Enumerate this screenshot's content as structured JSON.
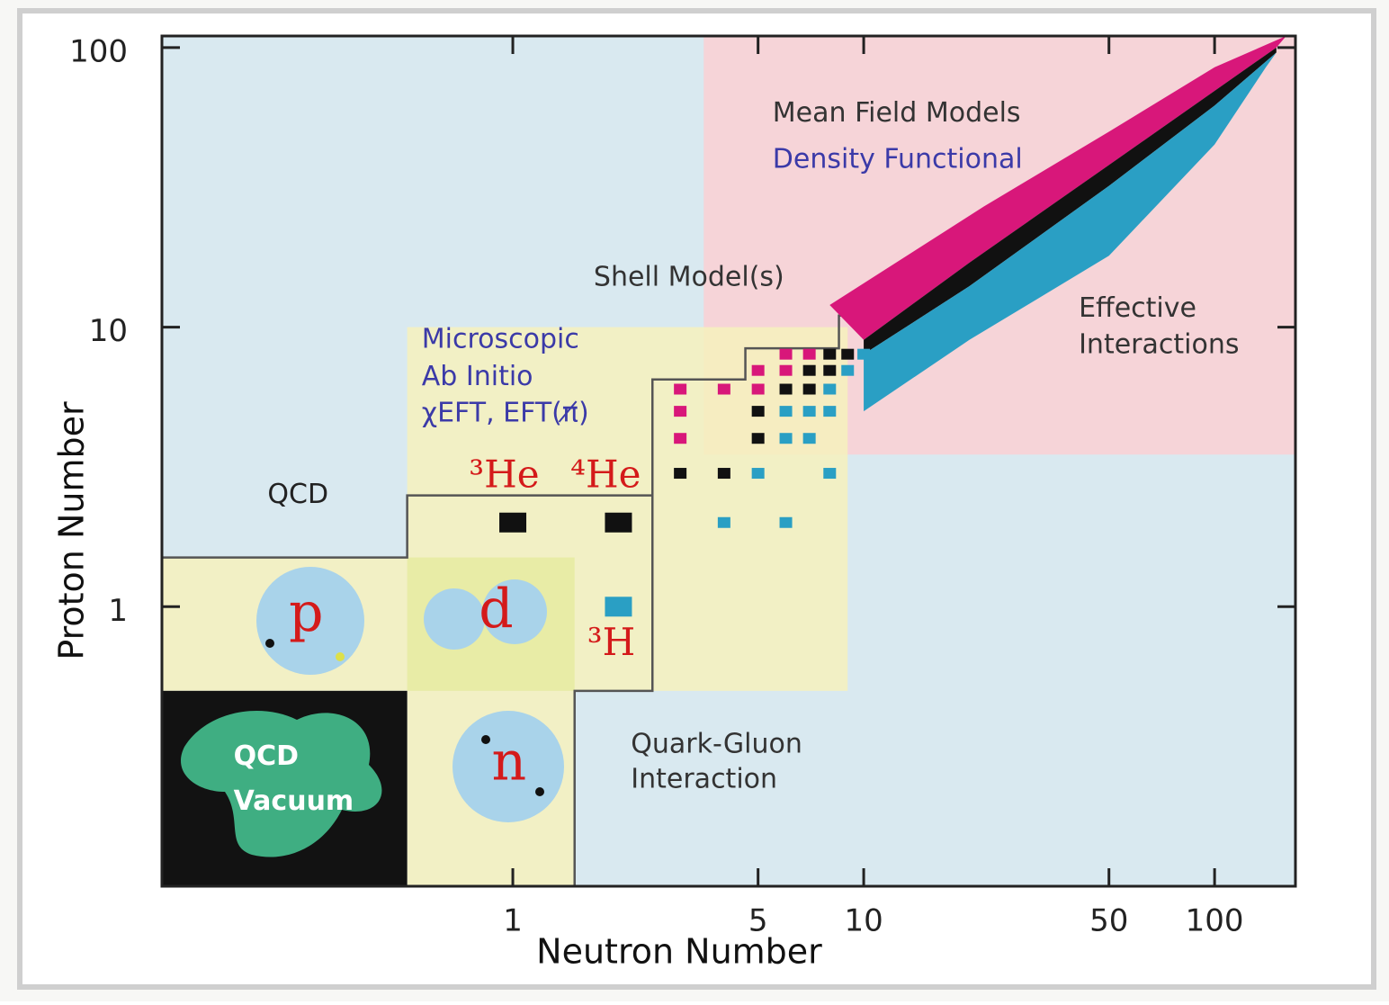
{
  "chart_data": {
    "type": "region_map",
    "xlabel": "Neutron Number",
    "ylabel": "Proton Number",
    "xscale": "log",
    "yscale": "log",
    "xlim": [
      0.1,
      170
    ],
    "ylim": [
      0.1,
      110
    ],
    "xticks": [
      1,
      5,
      10,
      50,
      100
    ],
    "yticks": [
      1,
      10,
      100
    ],
    "regions": [
      {
        "x": [
          0.1,
          170
        ],
        "y": [
          0.1,
          110
        ],
        "color": "#d9e9f0"
      },
      {
        "x": [
          3.5,
          170
        ],
        "y": [
          3.5,
          110
        ],
        "color": "#f6d4d8"
      },
      {
        "x": [
          0.5,
          9
        ],
        "y": [
          0.5,
          10
        ],
        "color": "#f6f1bd"
      },
      {
        "x": [
          0.1,
          0.5
        ],
        "y": [
          0.5,
          1.5
        ],
        "color": "#f6f1bd"
      },
      {
        "x": [
          0.5,
          1.5
        ],
        "y": [
          0.1,
          0.5
        ],
        "color": "#f6f1bd"
      },
      {
        "x": [
          0.5,
          1.5
        ],
        "y": [
          0.5,
          1.5
        ],
        "color": "#e8eca6"
      },
      {
        "x": [
          0.1,
          0.5
        ],
        "y": [
          0.1,
          0.5
        ],
        "color": "#121212"
      }
    ],
    "boundaries": [
      {
        "color": "#555555",
        "x": [
          0.1,
          0.5,
          0.5,
          2.5,
          2.5,
          4.6,
          4.6,
          8.5,
          8.5,
          10.5
        ],
        "y": [
          1.5,
          1.5,
          2.5,
          2.5,
          6.5,
          6.5,
          8.4,
          8.4,
          11,
          11
        ]
      },
      {
        "color": "#555555",
        "x": [
          1.5,
          1.5,
          2.5,
          2.5
        ],
        "y": [
          0.1,
          0.5,
          0.5,
          2.5
        ]
      }
    ],
    "bands": [
      {
        "color": "#d8177a",
        "x": [
          8,
          22,
          50,
          100,
          160,
          150,
          100,
          50,
          20,
          10
        ],
        "y": [
          12,
          27,
          50,
          85,
          110,
          100,
          70,
          38,
          17,
          9
        ]
      },
      {
        "color": "#111111",
        "x": [
          10,
          20,
          50,
          100,
          150,
          150,
          100,
          50,
          20,
          10
        ],
        "y": [
          9,
          17,
          38,
          70,
          100,
          96,
          62,
          32,
          14,
          8
        ]
      },
      {
        "color": "#2a9fc4",
        "x": [
          10,
          20,
          50,
          100,
          150,
          140,
          100,
          50,
          20,
          10
        ],
        "y": [
          8,
          14,
          32,
          62,
          96,
          85,
          45,
          18,
          9,
          5
        ]
      }
    ],
    "series": [
      {
        "color": "#d8177a",
        "x": [
          3,
          3,
          3,
          4,
          5,
          5,
          6,
          6,
          7
        ],
        "y": [
          4,
          5,
          6,
          6,
          6,
          7,
          7,
          8,
          8
        ]
      },
      {
        "color": "#111111",
        "x": [
          1,
          2,
          3,
          4,
          5,
          5,
          6,
          7,
          7,
          8,
          8,
          9
        ],
        "y": [
          2,
          2,
          3,
          3,
          4,
          5,
          6,
          6,
          7,
          7,
          8,
          8
        ]
      },
      {
        "color": "#2a9fc4",
        "x": [
          2,
          4,
          6,
          5,
          6,
          8,
          6,
          7,
          8,
          7,
          8,
          9,
          10
        ],
        "y": [
          1,
          2,
          2,
          3,
          4,
          3,
          5,
          4,
          5,
          5,
          6,
          7,
          8
        ]
      }
    ],
    "annotations": [
      {
        "text": "Mean Field Models",
        "x": 5.5,
        "y": 58,
        "color": "#333333"
      },
      {
        "text": "Density Functional",
        "x": 5.5,
        "y": 39.5,
        "color": "#3b3aa8"
      },
      {
        "text": "Shell Model(s)",
        "x": 1.7,
        "y": 15,
        "color": "#333333"
      },
      {
        "text": "Effective",
        "x": 41,
        "y": 11.6,
        "color": "#333333"
      },
      {
        "text": "Interactions",
        "x": 41,
        "y": 8.6,
        "color": "#333333"
      },
      {
        "text": "Microscopic",
        "x": 0.55,
        "y": 9,
        "color": "#3b3aa8"
      },
      {
        "text": "Ab Initio",
        "x": 0.55,
        "y": 6.6,
        "color": "#3b3aa8"
      },
      {
        "text": "χEFT, EFT(π̸)",
        "x": 0.55,
        "y": 4.9,
        "color": "#3b3aa8"
      },
      {
        "text": "QCD",
        "x": 0.2,
        "y": 2.5,
        "color": "#222222"
      },
      {
        "text": "³He",
        "x": 0.75,
        "y": 2.9,
        "color": "#d41a1a"
      },
      {
        "text": "⁴He",
        "x": 1.46,
        "y": 2.9,
        "color": "#d41a1a"
      },
      {
        "text": "³H",
        "x": 1.63,
        "y": 0.73,
        "color": "#d41a1a"
      },
      {
        "text": "p",
        "x": 0.23,
        "y": 0.92,
        "color": "#d41a1a"
      },
      {
        "text": "d",
        "x": 0.8,
        "y": 0.95,
        "color": "#d41a1a"
      },
      {
        "text": "n",
        "x": 0.87,
        "y": 0.27,
        "color": "#d41a1a"
      },
      {
        "text": "QCD",
        "x": 0.16,
        "y": 0.29,
        "color": "#ffffff"
      },
      {
        "text": "Vacuum",
        "x": 0.16,
        "y": 0.2,
        "color": "#ffffff"
      },
      {
        "text": "Quark-Gluon",
        "x": 2.17,
        "y": 0.32,
        "color": "#333333"
      },
      {
        "text": "Interaction",
        "x": 2.17,
        "y": 0.24,
        "color": "#333333"
      }
    ]
  }
}
